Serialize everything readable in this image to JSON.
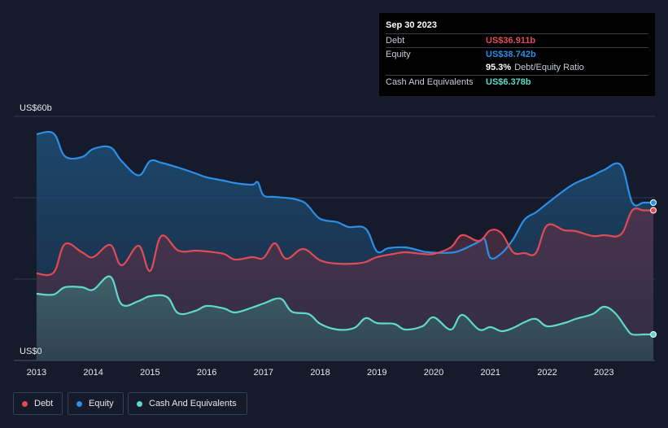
{
  "chart_data": {
    "type": "area",
    "y_axis": {
      "top_label": "US$60b",
      "bottom_label": "US$0",
      "ylim": [
        0,
        60
      ]
    },
    "x_ticks": [
      "2013",
      "2014",
      "2015",
      "2016",
      "2017",
      "2018",
      "2019",
      "2020",
      "2021",
      "2022",
      "2023"
    ],
    "x_range": [
      2012.6,
      2023.9
    ],
    "series": [
      {
        "name": "Equity",
        "color": "#2b8ee8",
        "points": [
          [
            2013.0,
            55.6
          ],
          [
            2013.3,
            55.8
          ],
          [
            2013.5,
            50.2
          ],
          [
            2013.8,
            50.0
          ],
          [
            2014.0,
            52.0
          ],
          [
            2014.3,
            52.4
          ],
          [
            2014.5,
            49.0
          ],
          [
            2014.8,
            45.5
          ],
          [
            2015.0,
            49.0
          ],
          [
            2015.2,
            48.6
          ],
          [
            2015.5,
            47.4
          ],
          [
            2015.8,
            46.0
          ],
          [
            2016.0,
            45.0
          ],
          [
            2016.3,
            44.2
          ],
          [
            2016.5,
            43.6
          ],
          [
            2016.8,
            43.2
          ],
          [
            2016.9,
            43.8
          ],
          [
            2017.0,
            40.6
          ],
          [
            2017.2,
            40.2
          ],
          [
            2017.5,
            39.8
          ],
          [
            2017.7,
            39.0
          ],
          [
            2017.8,
            37.8
          ],
          [
            2018.0,
            34.8
          ],
          [
            2018.3,
            34.0
          ],
          [
            2018.5,
            32.8
          ],
          [
            2018.8,
            32.4
          ],
          [
            2019.0,
            26.8
          ],
          [
            2019.2,
            27.6
          ],
          [
            2019.5,
            27.8
          ],
          [
            2019.7,
            27.2
          ],
          [
            2019.9,
            26.6
          ],
          [
            2020.3,
            26.5
          ],
          [
            2020.5,
            27.2
          ],
          [
            2020.8,
            29.2
          ],
          [
            2020.9,
            29.8
          ],
          [
            2021.0,
            25.2
          ],
          [
            2021.2,
            26.4
          ],
          [
            2021.4,
            29.8
          ],
          [
            2021.6,
            34.6
          ],
          [
            2021.8,
            36.4
          ],
          [
            2022.0,
            38.6
          ],
          [
            2022.3,
            41.8
          ],
          [
            2022.5,
            43.6
          ],
          [
            2022.8,
            45.4
          ],
          [
            2023.0,
            46.8
          ],
          [
            2023.3,
            48.0
          ],
          [
            2023.5,
            38.8
          ],
          [
            2023.7,
            38.8
          ]
        ]
      },
      {
        "name": "Debt",
        "color": "#e24a56",
        "points": [
          [
            2013.0,
            21.4
          ],
          [
            2013.3,
            21.6
          ],
          [
            2013.5,
            28.6
          ],
          [
            2013.8,
            26.6
          ],
          [
            2014.0,
            25.4
          ],
          [
            2014.3,
            28.4
          ],
          [
            2014.5,
            23.4
          ],
          [
            2014.8,
            28.2
          ],
          [
            2015.0,
            22.0
          ],
          [
            2015.2,
            30.6
          ],
          [
            2015.5,
            27.0
          ],
          [
            2015.8,
            27.0
          ],
          [
            2016.0,
            26.8
          ],
          [
            2016.3,
            26.2
          ],
          [
            2016.5,
            24.8
          ],
          [
            2016.8,
            25.4
          ],
          [
            2017.0,
            25.2
          ],
          [
            2017.2,
            28.8
          ],
          [
            2017.4,
            25.0
          ],
          [
            2017.7,
            27.4
          ],
          [
            2018.0,
            24.6
          ],
          [
            2018.3,
            23.8
          ],
          [
            2018.6,
            23.8
          ],
          [
            2018.8,
            24.2
          ],
          [
            2019.0,
            25.4
          ],
          [
            2019.3,
            26.2
          ],
          [
            2019.5,
            26.6
          ],
          [
            2019.8,
            26.2
          ],
          [
            2020.0,
            26.2
          ],
          [
            2020.3,
            27.8
          ],
          [
            2020.5,
            30.8
          ],
          [
            2020.8,
            29.4
          ],
          [
            2021.0,
            32.0
          ],
          [
            2021.2,
            31.2
          ],
          [
            2021.4,
            26.6
          ],
          [
            2021.6,
            26.4
          ],
          [
            2021.8,
            26.4
          ],
          [
            2022.0,
            33.2
          ],
          [
            2022.3,
            32.0
          ],
          [
            2022.5,
            31.8
          ],
          [
            2022.8,
            30.6
          ],
          [
            2023.0,
            30.8
          ],
          [
            2023.3,
            31.0
          ],
          [
            2023.5,
            36.9
          ],
          [
            2023.7,
            36.9
          ]
        ]
      },
      {
        "name": "Cash And Equivalents",
        "color": "#5fd9cc",
        "points": [
          [
            2013.0,
            16.4
          ],
          [
            2013.3,
            16.2
          ],
          [
            2013.5,
            18.0
          ],
          [
            2013.8,
            18.0
          ],
          [
            2014.0,
            17.4
          ],
          [
            2014.3,
            20.6
          ],
          [
            2014.5,
            13.8
          ],
          [
            2014.8,
            14.6
          ],
          [
            2015.0,
            15.8
          ],
          [
            2015.3,
            15.6
          ],
          [
            2015.5,
            11.6
          ],
          [
            2015.8,
            12.2
          ],
          [
            2016.0,
            13.4
          ],
          [
            2016.3,
            12.8
          ],
          [
            2016.5,
            11.8
          ],
          [
            2016.8,
            13.0
          ],
          [
            2017.0,
            14.0
          ],
          [
            2017.3,
            15.2
          ],
          [
            2017.5,
            12.0
          ],
          [
            2017.8,
            11.4
          ],
          [
            2018.0,
            9.0
          ],
          [
            2018.3,
            7.6
          ],
          [
            2018.6,
            8.0
          ],
          [
            2018.8,
            10.4
          ],
          [
            2019.0,
            9.2
          ],
          [
            2019.3,
            9.0
          ],
          [
            2019.5,
            7.6
          ],
          [
            2019.8,
            8.4
          ],
          [
            2020.0,
            10.6
          ],
          [
            2020.3,
            7.6
          ],
          [
            2020.5,
            11.2
          ],
          [
            2020.8,
            7.6
          ],
          [
            2021.0,
            8.2
          ],
          [
            2021.2,
            7.2
          ],
          [
            2021.4,
            8.0
          ],
          [
            2021.6,
            9.4
          ],
          [
            2021.8,
            10.2
          ],
          [
            2022.0,
            8.4
          ],
          [
            2022.3,
            9.2
          ],
          [
            2022.5,
            10.2
          ],
          [
            2022.8,
            11.4
          ],
          [
            2023.0,
            13.2
          ],
          [
            2023.2,
            11.6
          ],
          [
            2023.4,
            7.8
          ],
          [
            2023.5,
            6.4
          ],
          [
            2023.7,
            6.4
          ]
        ]
      }
    ],
    "legend": [
      "Debt",
      "Equity",
      "Cash And Equivalents"
    ],
    "legend_position": "bottom-left"
  },
  "tooltip": {
    "date": "Sep 30 2023",
    "debt_label": "Debt",
    "debt_value": "US$36.911b",
    "equity_label": "Equity",
    "equity_value": "US$38.742b",
    "ratio_value": "95.3%",
    "ratio_label": "Debt/Equity Ratio",
    "cash_label": "Cash And Equivalents",
    "cash_value": "US$6.378b"
  },
  "colors": {
    "debt": "#e24a56",
    "equity": "#2b8ee8",
    "cash": "#5fd9cc",
    "background": "#151b2a",
    "tooltip_bg": "#000000"
  }
}
